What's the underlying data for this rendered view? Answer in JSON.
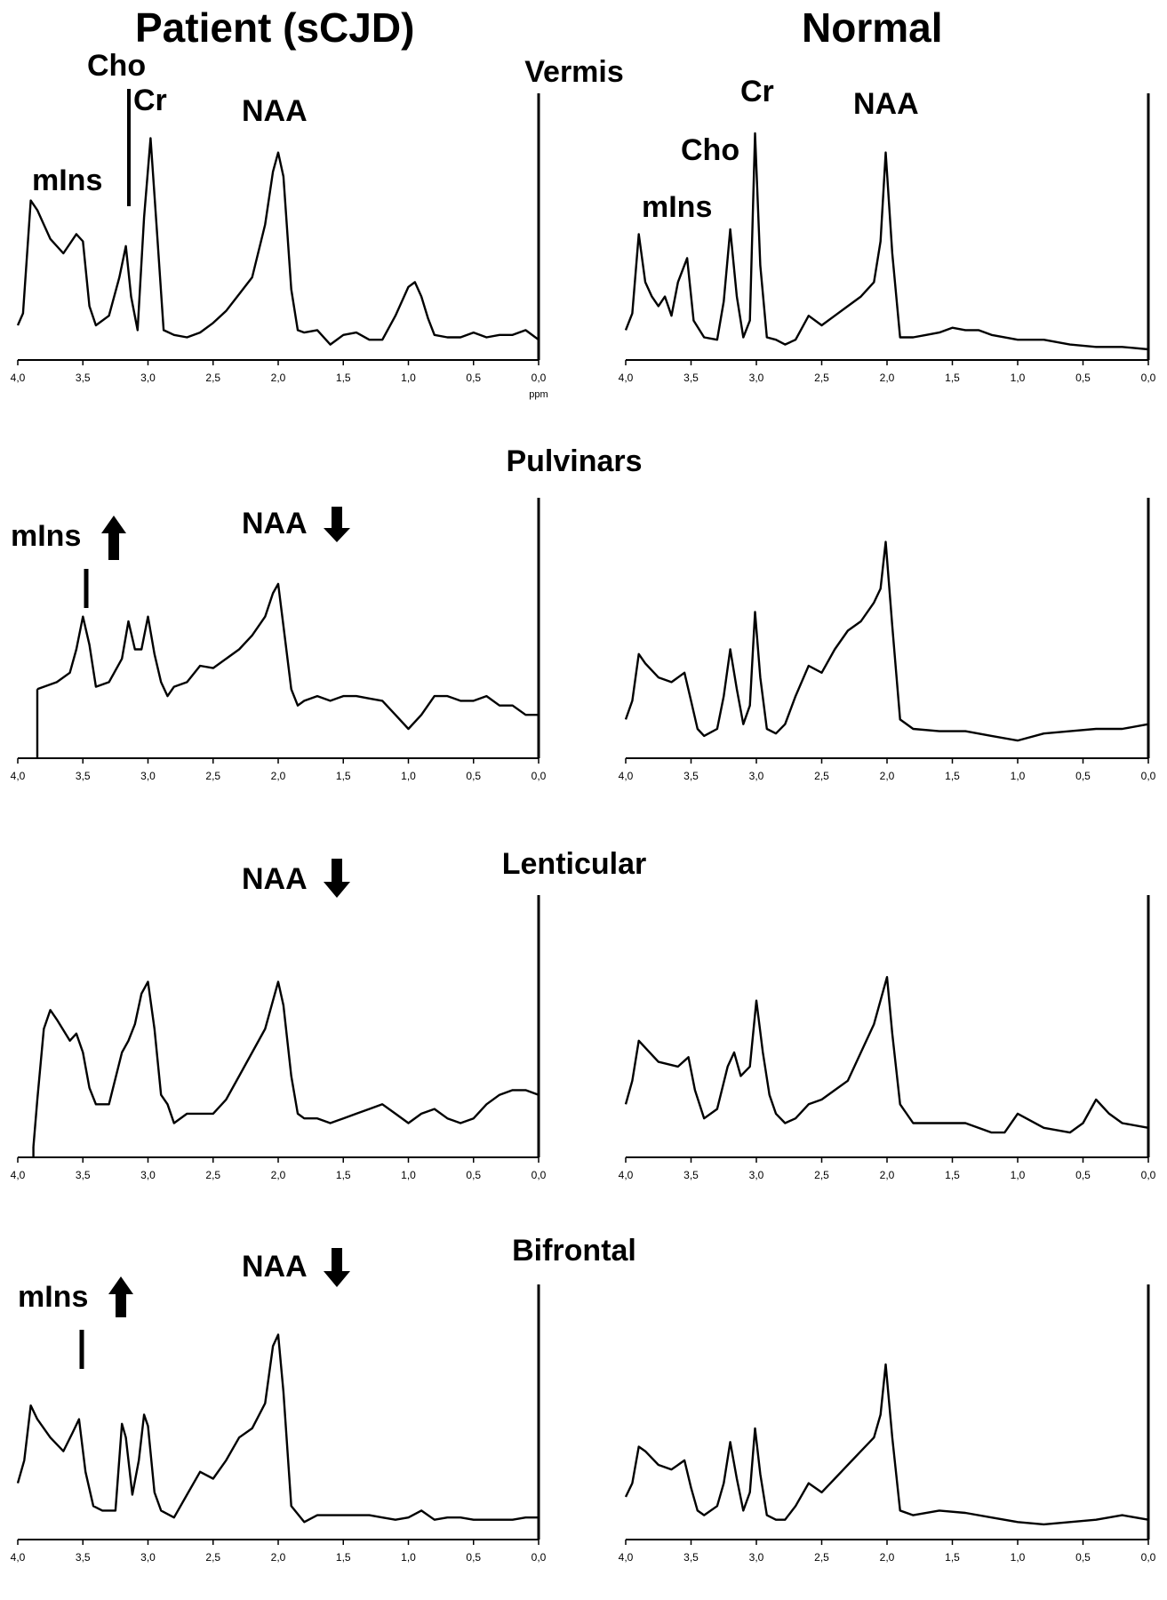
{
  "figure": {
    "column_titles": [
      "Patient (sCJD)",
      "Normal"
    ],
    "row_titles": [
      "Vermis",
      "Pulvinars",
      "Lenticular",
      "Bifrontal"
    ],
    "ppm_label": "ppm"
  },
  "chart_data": [
    {
      "type": "line",
      "region": "Vermis",
      "group": "Patient (sCJD)",
      "xlabel": "ppm",
      "xlim": [
        4.0,
        0.0
      ],
      "x_reversed": true,
      "xticks": [
        "4,0",
        "3,5",
        "3,0",
        "2,5",
        "2,0",
        "1,5",
        "1,0",
        "0,5",
        "0,0"
      ],
      "ylim": [
        0,
        100
      ],
      "x": [
        4.0,
        3.96,
        3.9,
        3.85,
        3.75,
        3.65,
        3.55,
        3.5,
        3.45,
        3.4,
        3.3,
        3.22,
        3.17,
        3.13,
        3.08,
        3.03,
        2.98,
        2.93,
        2.88,
        2.8,
        2.7,
        2.6,
        2.5,
        2.4,
        2.3,
        2.2,
        2.1,
        2.04,
        2.0,
        1.96,
        1.9,
        1.85,
        1.8,
        1.7,
        1.6,
        1.5,
        1.4,
        1.3,
        1.2,
        1.1,
        1.0,
        0.95,
        0.9,
        0.85,
        0.8,
        0.7,
        0.6,
        0.5,
        0.4,
        0.3,
        0.2,
        0.1,
        0.0
      ],
      "y": [
        10,
        15,
        62,
        58,
        46,
        40,
        48,
        45,
        18,
        10,
        14,
        30,
        43,
        22,
        8,
        55,
        88,
        48,
        8,
        6,
        5,
        7,
        11,
        16,
        23,
        30,
        52,
        74,
        82,
        72,
        25,
        8,
        7,
        8,
        2,
        6,
        7,
        4,
        4,
        14,
        26,
        28,
        22,
        13,
        6,
        5,
        5,
        7,
        5,
        6,
        6,
        8,
        4
      ],
      "annotations": [
        "mIns",
        "Cho",
        "Cr",
        "NAA"
      ]
    },
    {
      "type": "line",
      "region": "Vermis",
      "group": "Normal",
      "xlim": [
        4.0,
        0.0
      ],
      "x_reversed": true,
      "xticks": [
        "4,0",
        "3,5",
        "3,0",
        "2,5",
        "2,0",
        "1,5",
        "1,0",
        "0,5",
        "0,0"
      ],
      "ylim": [
        0,
        100
      ],
      "x": [
        4.0,
        3.95,
        3.9,
        3.85,
        3.8,
        3.75,
        3.7,
        3.65,
        3.6,
        3.53,
        3.48,
        3.4,
        3.3,
        3.25,
        3.2,
        3.15,
        3.1,
        3.05,
        3.01,
        2.97,
        2.92,
        2.85,
        2.78,
        2.7,
        2.6,
        2.5,
        2.4,
        2.3,
        2.2,
        2.1,
        2.05,
        2.01,
        1.96,
        1.9,
        1.8,
        1.7,
        1.6,
        1.5,
        1.4,
        1.3,
        1.2,
        1.0,
        0.8,
        0.6,
        0.4,
        0.2,
        0.0
      ],
      "y": [
        8,
        15,
        48,
        28,
        22,
        18,
        22,
        14,
        28,
        38,
        12,
        5,
        4,
        20,
        50,
        22,
        5,
        12,
        90,
        35,
        5,
        4,
        2,
        4,
        14,
        10,
        14,
        18,
        22,
        28,
        45,
        82,
        40,
        5,
        5,
        6,
        7,
        9,
        8,
        8,
        6,
        4,
        4,
        2,
        1,
        1,
        0
      ],
      "annotations": [
        "Cr",
        "NAA",
        "Cho",
        "mIns"
      ]
    },
    {
      "type": "line",
      "region": "Pulvinars",
      "group": "Patient (sCJD)",
      "xlim": [
        4.0,
        0.0
      ],
      "x_reversed": true,
      "xticks": [
        "4,0",
        "3,5",
        "3,0",
        "2,5",
        "2,0",
        "1,5",
        "1,0",
        "0,5",
        "0,0"
      ],
      "ylim": [
        0,
        100
      ],
      "x": [
        3.85,
        3.8,
        3.7,
        3.6,
        3.55,
        3.5,
        3.45,
        3.4,
        3.3,
        3.2,
        3.15,
        3.1,
        3.05,
        3.0,
        2.95,
        2.9,
        2.85,
        2.8,
        2.7,
        2.6,
        2.5,
        2.4,
        2.3,
        2.2,
        2.1,
        2.04,
        2.0,
        1.96,
        1.9,
        1.85,
        1.8,
        1.7,
        1.6,
        1.5,
        1.4,
        1.3,
        1.2,
        1.1,
        1.0,
        0.9,
        0.8,
        0.7,
        0.6,
        0.5,
        0.4,
        0.3,
        0.2,
        0.1,
        0.0
      ],
      "y": [
        25,
        26,
        28,
        32,
        42,
        56,
        44,
        26,
        28,
        38,
        54,
        42,
        42,
        56,
        40,
        28,
        22,
        26,
        28,
        35,
        34,
        38,
        42,
        48,
        56,
        66,
        70,
        52,
        25,
        18,
        20,
        22,
        20,
        22,
        22,
        21,
        20,
        14,
        8,
        14,
        22,
        22,
        20,
        20,
        22,
        18,
        18,
        14,
        14
      ],
      "annotations": [
        "mIns",
        "NAA"
      ]
    },
    {
      "type": "line",
      "region": "Pulvinars",
      "group": "Normal",
      "xlim": [
        4.0,
        0.0
      ],
      "x_reversed": true,
      "xticks": [
        "4,0",
        "3,5",
        "3,0",
        "2,5",
        "2,0",
        "1,5",
        "1,0",
        "0,5",
        "0,0"
      ],
      "ylim": [
        0,
        100
      ],
      "x": [
        4.0,
        3.95,
        3.9,
        3.85,
        3.75,
        3.65,
        3.55,
        3.5,
        3.45,
        3.4,
        3.3,
        3.25,
        3.2,
        3.15,
        3.1,
        3.05,
        3.01,
        2.97,
        2.92,
        2.85,
        2.78,
        2.7,
        2.6,
        2.5,
        2.4,
        2.3,
        2.2,
        2.1,
        2.05,
        2.01,
        1.96,
        1.9,
        1.8,
        1.6,
        1.4,
        1.2,
        1.0,
        0.8,
        0.6,
        0.4,
        0.2,
        0.0
      ],
      "y": [
        12,
        20,
        40,
        36,
        30,
        28,
        32,
        20,
        8,
        5,
        8,
        22,
        42,
        25,
        10,
        18,
        58,
        30,
        8,
        6,
        10,
        22,
        35,
        32,
        42,
        50,
        54,
        62,
        68,
        88,
        52,
        12,
        8,
        7,
        7,
        5,
        3,
        6,
        7,
        8,
        8,
        10
      ],
      "annotations": []
    },
    {
      "type": "line",
      "region": "Lenticular",
      "group": "Patient (sCJD)",
      "xlim": [
        4.0,
        0.0
      ],
      "x_reversed": true,
      "xticks": [
        "4,0",
        "3,5",
        "3,0",
        "2,5",
        "2,0",
        "1,5",
        "1,0",
        "0,5",
        "0,0"
      ],
      "ylim": [
        0,
        100
      ],
      "x": [
        3.88,
        3.85,
        3.8,
        3.75,
        3.7,
        3.6,
        3.55,
        3.5,
        3.45,
        3.4,
        3.3,
        3.2,
        3.15,
        3.1,
        3.05,
        3.0,
        2.95,
        2.9,
        2.85,
        2.8,
        2.7,
        2.6,
        2.5,
        2.4,
        2.3,
        2.2,
        2.1,
        2.04,
        2.0,
        1.96,
        1.9,
        1.85,
        1.8,
        1.7,
        1.6,
        1.5,
        1.4,
        1.3,
        1.2,
        1.1,
        1.0,
        0.9,
        0.8,
        0.7,
        0.6,
        0.5,
        0.4,
        0.3,
        0.2,
        0.1,
        0.0
      ],
      "y": [
        0,
        20,
        50,
        58,
        54,
        45,
        48,
        40,
        25,
        18,
        18,
        40,
        45,
        52,
        65,
        70,
        50,
        22,
        18,
        10,
        14,
        14,
        14,
        20,
        30,
        40,
        50,
        62,
        70,
        60,
        30,
        14,
        12,
        12,
        10,
        12,
        14,
        16,
        18,
        14,
        10,
        14,
        16,
        12,
        10,
        12,
        18,
        22,
        24,
        24,
        22
      ],
      "annotations": [
        "NAA"
      ]
    },
    {
      "type": "line",
      "region": "Lenticular",
      "group": "Normal",
      "xlim": [
        4.0,
        0.0
      ],
      "x_reversed": true,
      "xticks": [
        "4,0",
        "3,5",
        "3,0",
        "2,5",
        "2,0",
        "1,5",
        "1,0",
        "0,5",
        "0,0"
      ],
      "ylim": [
        0,
        100
      ],
      "x": [
        4.0,
        3.95,
        3.9,
        3.85,
        3.75,
        3.6,
        3.52,
        3.47,
        3.4,
        3.3,
        3.22,
        3.17,
        3.12,
        3.05,
        3.0,
        2.95,
        2.9,
        2.85,
        2.78,
        2.7,
        2.6,
        2.5,
        2.4,
        2.3,
        2.2,
        2.1,
        2.04,
        2.0,
        1.96,
        1.9,
        1.8,
        1.6,
        1.4,
        1.2,
        1.1,
        1.0,
        0.8,
        0.6,
        0.5,
        0.4,
        0.3,
        0.2,
        0.0
      ],
      "y": [
        18,
        28,
        45,
        42,
        36,
        34,
        38,
        24,
        12,
        16,
        34,
        40,
        30,
        34,
        62,
        40,
        22,
        14,
        10,
        12,
        18,
        20,
        24,
        28,
        40,
        52,
        64,
        72,
        48,
        18,
        10,
        10,
        10,
        6,
        6,
        14,
        8,
        6,
        10,
        20,
        14,
        10,
        8
      ],
      "annotations": []
    },
    {
      "type": "line",
      "region": "Bifrontal",
      "group": "Patient (sCJD)",
      "xlim": [
        4.0,
        0.0
      ],
      "x_reversed": true,
      "xticks": [
        "4,0",
        "3,5",
        "3,0",
        "2,5",
        "2,0",
        "1,5",
        "1,0",
        "0,5",
        "0,0"
      ],
      "ylim": [
        0,
        100
      ],
      "x": [
        4.0,
        3.95,
        3.9,
        3.85,
        3.75,
        3.65,
        3.58,
        3.53,
        3.48,
        3.42,
        3.35,
        3.25,
        3.2,
        3.17,
        3.12,
        3.07,
        3.03,
        3.0,
        2.95,
        2.9,
        2.8,
        2.7,
        2.6,
        2.5,
        2.4,
        2.3,
        2.2,
        2.1,
        2.04,
        2.0,
        1.96,
        1.9,
        1.8,
        1.7,
        1.6,
        1.5,
        1.4,
        1.3,
        1.2,
        1.1,
        1.0,
        0.9,
        0.8,
        0.7,
        0.6,
        0.5,
        0.4,
        0.3,
        0.2,
        0.1,
        0.0
      ],
      "y": [
        20,
        30,
        54,
        48,
        40,
        34,
        42,
        48,
        25,
        10,
        8,
        8,
        46,
        40,
        15,
        30,
        50,
        45,
        16,
        8,
        5,
        15,
        25,
        22,
        30,
        40,
        44,
        55,
        80,
        85,
        60,
        10,
        3,
        6,
        6,
        6,
        6,
        6,
        5,
        4,
        5,
        8,
        4,
        5,
        5,
        4,
        4,
        4,
        4,
        5,
        5
      ],
      "annotations": [
        "mIns",
        "NAA"
      ]
    },
    {
      "type": "line",
      "region": "Bifrontal",
      "group": "Normal",
      "xlim": [
        4.0,
        0.0
      ],
      "x_reversed": true,
      "xticks": [
        "4,0",
        "3,5",
        "3,0",
        "2,5",
        "2,0",
        "1,5",
        "1,0",
        "0,5",
        "0,0"
      ],
      "ylim": [
        0,
        100
      ],
      "x": [
        4.0,
        3.95,
        3.9,
        3.85,
        3.75,
        3.65,
        3.55,
        3.5,
        3.45,
        3.4,
        3.3,
        3.25,
        3.2,
        3.15,
        3.1,
        3.05,
        3.01,
        2.97,
        2.92,
        2.85,
        2.78,
        2.7,
        2.6,
        2.5,
        2.4,
        2.3,
        2.2,
        2.1,
        2.05,
        2.01,
        1.96,
        1.9,
        1.8,
        1.6,
        1.4,
        1.2,
        1.0,
        0.8,
        0.6,
        0.4,
        0.2,
        0.0
      ],
      "y": [
        14,
        20,
        36,
        34,
        28,
        26,
        30,
        18,
        8,
        6,
        10,
        20,
        38,
        22,
        8,
        16,
        44,
        24,
        6,
        4,
        4,
        10,
        20,
        16,
        22,
        28,
        34,
        40,
        50,
        72,
        40,
        8,
        6,
        8,
        7,
        5,
        3,
        2,
        3,
        4,
        6,
        4
      ],
      "annotations": []
    }
  ],
  "annotations": {
    "vermis_patient": {
      "mIns": "mIns",
      "Cho": "Cho",
      "Cr": "Cr",
      "NAA": "NAA"
    },
    "vermis_normal": {
      "Cr": "Cr",
      "NAA": "NAA",
      "Cho": "Cho",
      "mIns": "mIns"
    },
    "pulvinars_patient": {
      "mIns": "mIns",
      "NAA": "NAA"
    },
    "lenticular_patient": {
      "NAA": "NAA"
    },
    "bifrontal_patient": {
      "mIns": "mIns",
      "NAA": "NAA"
    }
  }
}
